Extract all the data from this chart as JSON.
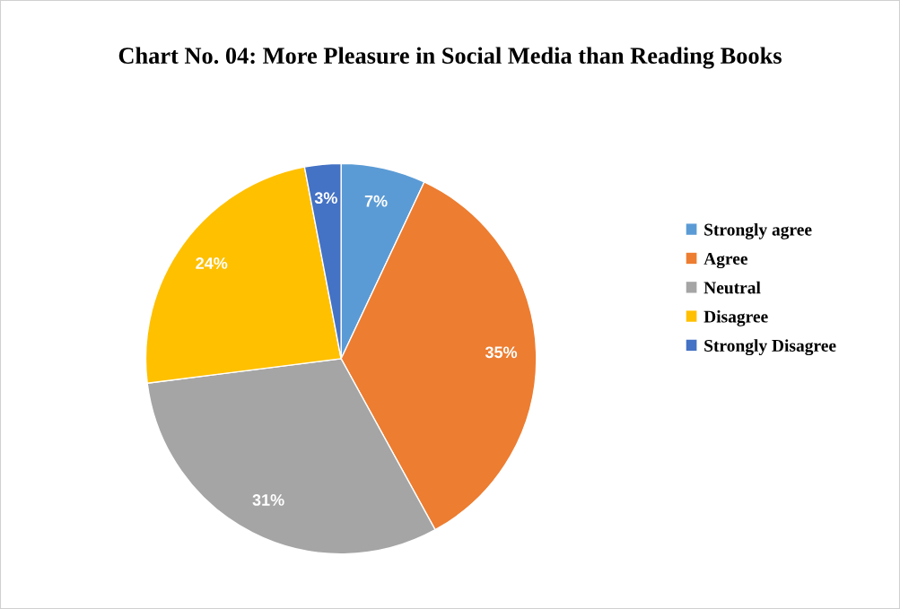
{
  "chart_data": {
    "type": "pie",
    "title": "Chart No. 04: More Pleasure in Social Media than Reading Books",
    "categories": [
      "Strongly agree",
      "Agree",
      "Neutral",
      "Disagree",
      "Strongly Disagree"
    ],
    "values": [
      7,
      35,
      31,
      24,
      3
    ],
    "colors": [
      "#5b9bd5",
      "#ed7d31",
      "#a5a5a5",
      "#ffc000",
      "#4472c4"
    ],
    "value_labels": [
      "7%",
      "35%",
      "31%",
      "24%",
      "3%"
    ],
    "legend": "right"
  }
}
